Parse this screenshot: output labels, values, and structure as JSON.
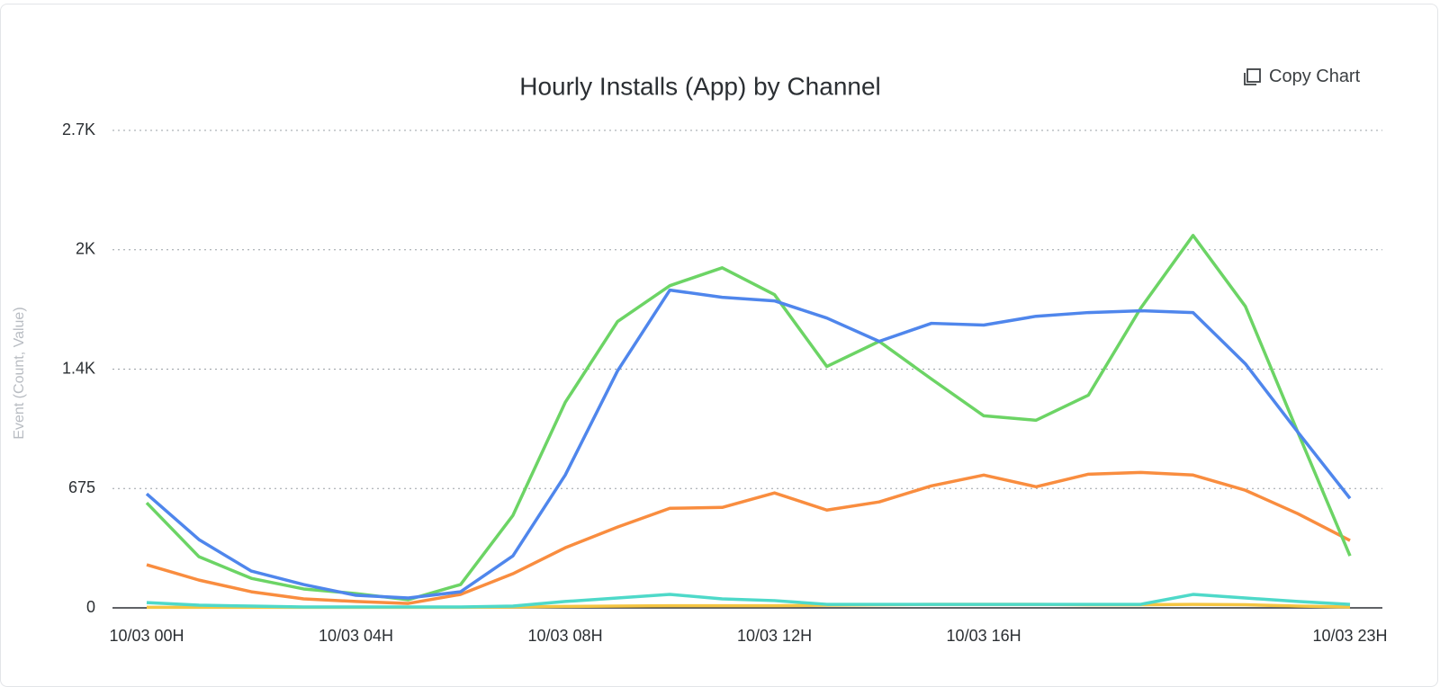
{
  "chart_data": {
    "type": "line",
    "title": "Hourly Installs (App) by Channel",
    "y_label": "Event (Count, Value)",
    "copy_button": "Copy Chart",
    "categories": [
      "10/03 00H",
      null,
      null,
      null,
      "10/03 04H",
      null,
      null,
      null,
      "10/03 08H",
      null,
      null,
      null,
      "10/03 12H",
      null,
      null,
      null,
      "10/03 16H",
      null,
      null,
      null,
      null,
      null,
      null,
      "10/03 23H"
    ],
    "series": [
      {
        "color": "#4f86ec",
        "values": [
          645,
          386,
          208,
          132,
          71,
          56,
          91,
          294,
          751,
          1340,
          1797,
          1756,
          1736,
          1639,
          1507,
          1609,
          1599,
          1649,
          1670,
          1680,
          1670,
          1380,
          995,
          619
        ]
      },
      {
        "color": "#6cd465",
        "values": [
          594,
          289,
          167,
          107,
          81,
          46,
          132,
          523,
          1162,
          1619,
          1822,
          1923,
          1771,
          1365,
          1507,
          1294,
          1086,
          1061,
          1203,
          1695,
          2106,
          1705,
          995,
          294
        ]
      },
      {
        "color": "#f98d3f",
        "values": [
          244,
          157,
          91,
          51,
          36,
          25,
          76,
          193,
          340,
          457,
          563,
          568,
          650,
          553,
          599,
          690,
          751,
          685,
          756,
          766,
          751,
          665,
          533,
          381
        ]
      },
      {
        "color": "#4ed9c9",
        "values": [
          30,
          15,
          10,
          5,
          5,
          5,
          5,
          10,
          36,
          56,
          76,
          51,
          41,
          20,
          20,
          20,
          20,
          20,
          20,
          20,
          76,
          56,
          36,
          20
        ]
      },
      {
        "color": "#f5c542",
        "values": [
          3,
          3,
          3,
          3,
          3,
          3,
          3,
          5,
          8,
          10,
          12,
          12,
          12,
          15,
          18,
          20,
          20,
          20,
          18,
          18,
          20,
          18,
          10,
          5
        ]
      }
    ],
    "ylim": [
      0,
      2700
    ],
    "yticks": [
      0,
      {
        "value": 675,
        "label": "675"
      },
      {
        "value": 1350,
        "label": "1.4K"
      },
      {
        "value": 2025,
        "label": "2K"
      },
      {
        "value": 2700,
        "label": "2.7K"
      }
    ],
    "grid": true
  }
}
